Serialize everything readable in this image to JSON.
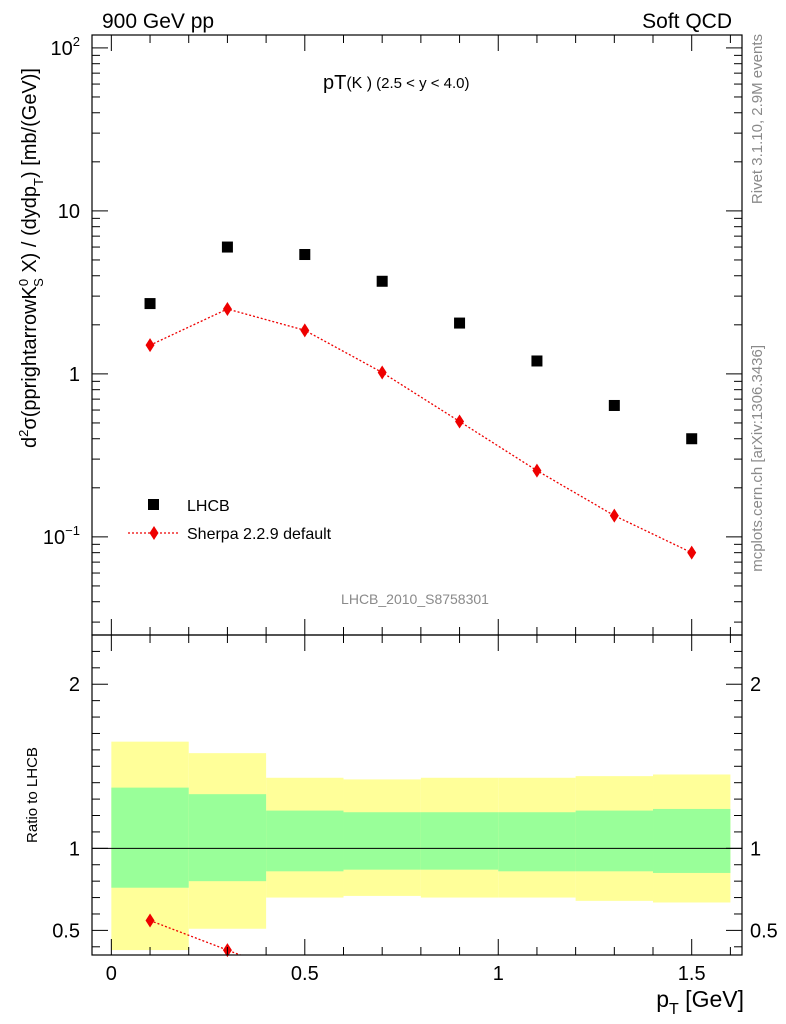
{
  "header": {
    "left": "900 GeV pp",
    "right": "Soft QCD"
  },
  "side_labels": {
    "rivet": "Rivet 3.1.10,  2.9M events",
    "mcplots": "mcplots.cern.ch [arXiv:1306.3436]"
  },
  "chart_data": [
    {
      "type": "scatter",
      "title": "pT(K°)",
      "title_prefix": "pT",
      "title_particle": "(K )",
      "title_particle_sup": "°",
      "title_cut": "(2.5 < y < 4.0)",
      "analysis_label": "LHCB_2010_S8758301",
      "ylabel_parts": {
        "d": "d",
        "sup2": "2",
        "body": "σ(pprightarrowK",
        "sup0": "0",
        "subS": "S",
        "tail": " X) / (dydp",
        "subT": "T",
        "end": ") [mb/(GeV)]"
      },
      "yscale": "log",
      "ylim": [
        0.025,
        120
      ],
      "xlim": [
        -0.05,
        1.63
      ],
      "yticks": [
        {
          "value": 0.1,
          "base": "10",
          "exp": "−1"
        },
        {
          "value": 1,
          "base": "1",
          "exp": ""
        },
        {
          "value": 10,
          "base": "10",
          "exp": ""
        },
        {
          "value": 100,
          "base": "10",
          "exp": "2"
        }
      ],
      "legend_position": "lower-left",
      "series": [
        {
          "name": "LHCB",
          "marker": "square",
          "color": "#000000",
          "x": [
            0.1,
            0.3,
            0.5,
            0.7,
            0.9,
            1.1,
            1.3,
            1.5
          ],
          "y": [
            2.7,
            6.0,
            5.4,
            3.7,
            2.05,
            1.2,
            0.64,
            0.4
          ]
        },
        {
          "name": "Sherpa 2.2.9 default",
          "marker": "diamond",
          "line": "dotted",
          "color": "#ee0000",
          "x": [
            0.1,
            0.3,
            0.5,
            0.7,
            0.9,
            1.1,
            1.3,
            1.5
          ],
          "y": [
            1.5,
            2.5,
            1.85,
            1.02,
            0.51,
            0.255,
            0.135,
            0.08
          ]
        }
      ]
    },
    {
      "type": "area",
      "ylabel": "Ratio to LHCB",
      "xlabel_p": "p",
      "xlabel_sub": "T",
      "xlabel_unit": " [GeV]",
      "ylim": [
        0.35,
        2.3
      ],
      "xlim": [
        -0.05,
        1.63
      ],
      "xticks": [
        {
          "value": 0,
          "label": "0"
        },
        {
          "value": 0.5,
          "label": "0.5"
        },
        {
          "value": 1,
          "label": "1"
        },
        {
          "value": 1.5,
          "label": "1.5"
        }
      ],
      "yticks": [
        {
          "value": 0.5,
          "label": "0.5"
        },
        {
          "value": 1,
          "label": "1"
        },
        {
          "value": 2,
          "label": "2"
        }
      ],
      "bands": {
        "edges": [
          0.0,
          0.2,
          0.4,
          0.6,
          0.8,
          1.0,
          1.2,
          1.4,
          1.6
        ],
        "yellow_low": [
          0.38,
          0.51,
          0.7,
          0.71,
          0.7,
          0.7,
          0.68,
          0.67
        ],
        "yellow_high": [
          1.65,
          1.58,
          1.43,
          1.42,
          1.43,
          1.43,
          1.44,
          1.45
        ],
        "green_low": [
          0.76,
          0.8,
          0.86,
          0.87,
          0.87,
          0.86,
          0.86,
          0.85
        ],
        "green_high": [
          1.37,
          1.33,
          1.23,
          1.22,
          1.22,
          1.22,
          1.23,
          1.24
        ]
      },
      "series": [
        {
          "name": "Sherpa 2.2.9 default",
          "color": "#ee0000",
          "x": [
            0.1,
            0.3
          ],
          "y": [
            0.56,
            0.38
          ]
        }
      ]
    }
  ]
}
